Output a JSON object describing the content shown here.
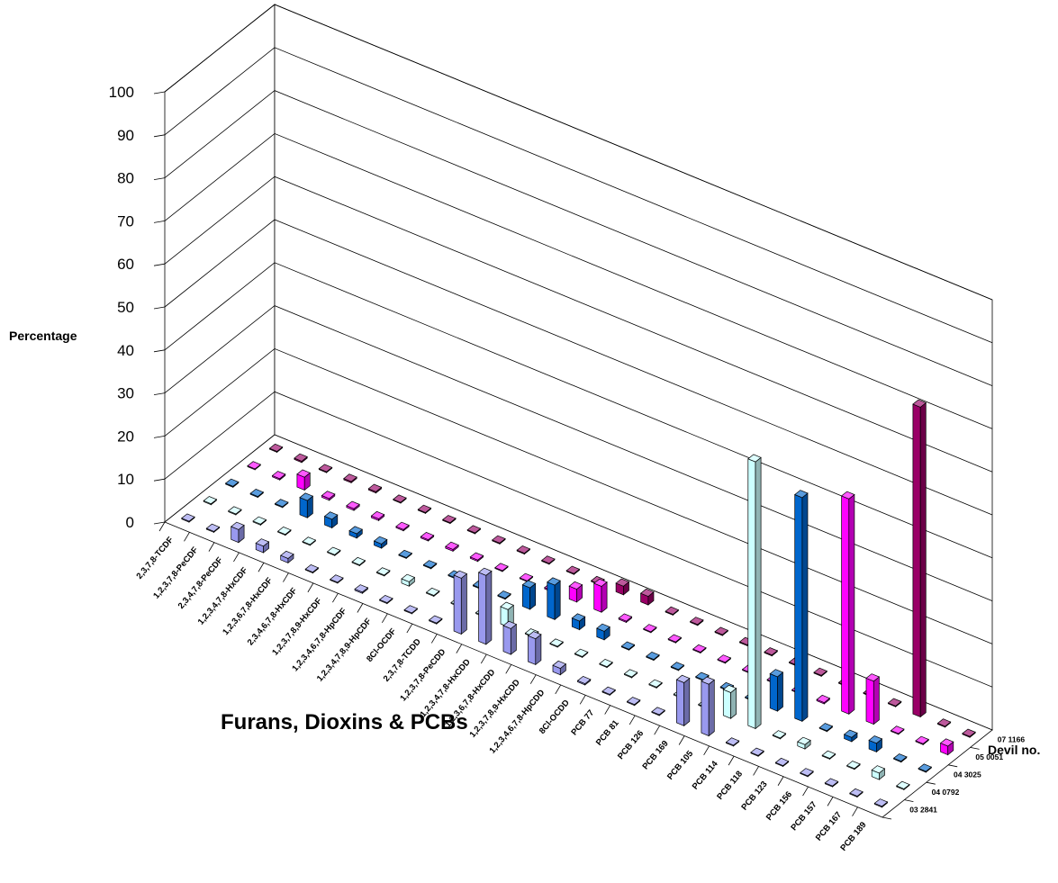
{
  "chart_data": {
    "type": "bar",
    "title": "Furans, Dioxins & PCBs",
    "ylabel": "Percentage",
    "zlabel": "Devil no.",
    "ylim": [
      0,
      100
    ],
    "yticks": [
      "0",
      "10",
      "20",
      "30",
      "40",
      "50",
      "60",
      "70",
      "80",
      "90",
      "100"
    ],
    "categories": [
      "2,3,7,8-TCDF",
      "1,2,3,7,8-PeCDF",
      "2,3,4,7,8-PeCDF",
      "1,2,3,4,7,8-HxCDF",
      "1,2,3,6,7,8-HxCDF",
      "2,3,4,6,7,8-HxCDF",
      "1,2,3,7,8,9-HxCDF",
      "1,2,3,4,6,7,8-HpCDF",
      "1,2,3,4,7,8,9-HpCDF",
      "8Cl-OCDF",
      "2,3,7,8-TCDD",
      "1,2,3,7,8-PeCDD",
      "1,2,3,4,7,8-HxCDD",
      "1,2,3,6,7,8-HxCDD",
      "1,2,3,7,8,9-HxCDD",
      "1,2,3,4,6,7,8-HpCDD",
      "8Cl-OCDD",
      "PCB 77",
      "PCB 81",
      "PCB 126",
      "PCB 169",
      "PCB 105",
      "PCB 114",
      "PCB 118",
      "PCB 123",
      "PCB 156",
      "PCB 157",
      "PCB 167",
      "PCB 189"
    ],
    "series": [
      {
        "name": "03 2841",
        "color": "#9999ee",
        "values": [
          0.2,
          0.2,
          3,
          1.5,
          1,
          0.2,
          0.2,
          0.3,
          0.2,
          0.2,
          0.2,
          13,
          16,
          6,
          6,
          1.5,
          0.3,
          0.2,
          0.2,
          0.2,
          10,
          12,
          0.2,
          0.2,
          0.2,
          0.2,
          0.2,
          0.2,
          0.2
        ]
      },
      {
        "name": "04 0792",
        "color": "#ccffff",
        "values": [
          0.2,
          0.2,
          0.2,
          0.2,
          0.2,
          0.2,
          0.2,
          0.2,
          1,
          0.2,
          0.2,
          0.2,
          4,
          0.2,
          0.2,
          0.2,
          0.2,
          0.2,
          0.2,
          0.2,
          0.2,
          6,
          62,
          0.2,
          1,
          0.2,
          0.2,
          1.5,
          0.2
        ]
      },
      {
        "name": "04 3025",
        "color": "#0066cc",
        "values": [
          0.2,
          0.2,
          0.2,
          4,
          2,
          1,
          1,
          0.2,
          0.2,
          0.2,
          0.2,
          0.2,
          5,
          8,
          2,
          2,
          0.2,
          0.2,
          0.2,
          0.2,
          0.2,
          0.2,
          8,
          52,
          0.2,
          1,
          2,
          0.2,
          0.2
        ]
      },
      {
        "name": "05 0051",
        "color": "#ff00ff",
        "values": [
          0.2,
          0.3,
          3,
          0.4,
          0.4,
          0.4,
          0.3,
          0.3,
          0.4,
          0.3,
          0.2,
          0.2,
          0.3,
          3,
          6,
          0.3,
          0.2,
          0.2,
          0.2,
          0.2,
          0.2,
          0.2,
          0.2,
          0.3,
          50,
          10,
          0.2,
          0.2,
          2
        ]
      },
      {
        "name": "07 1166",
        "color": "#990066",
        "values": [
          0.2,
          0.3,
          0.2,
          0.3,
          0.3,
          0.2,
          0.2,
          0.2,
          0.2,
          0.2,
          0.2,
          0.2,
          0.2,
          0.2,
          2,
          2,
          0.2,
          0.2,
          0.2,
          0.2,
          0.2,
          0.2,
          0.2,
          0.2,
          0.2,
          0.2,
          72,
          0.2,
          0.2
        ]
      }
    ]
  }
}
